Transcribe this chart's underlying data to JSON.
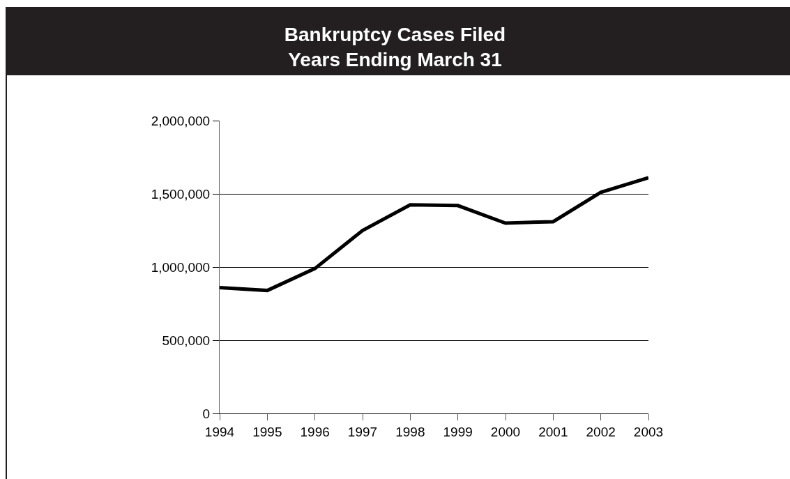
{
  "chart_data": {
    "type": "line",
    "title": "Bankruptcy Cases Filed",
    "subtitle": "Years Ending March 31",
    "categories": [
      "1994",
      "1995",
      "1996",
      "1997",
      "1998",
      "1999",
      "2000",
      "2001",
      "2002",
      "2003"
    ],
    "series": [
      {
        "color": "#000000",
        "values": [
          860000,
          840000,
          990000,
          1250000,
          1425000,
          1420000,
          1300000,
          1310000,
          1510000,
          1610000
        ]
      }
    ],
    "ylim": [
      0,
      2000000
    ],
    "yticks": [
      0,
      {
        "value": 500000,
        "label": "500,000"
      },
      {
        "value": 1000000,
        "label": "1,000,000"
      },
      {
        "value": 1500000,
        "label": "1,500,000"
      },
      {
        "value": 2000000,
        "label": "2,000,000"
      }
    ],
    "grid": "y",
    "marker": "none",
    "line_style": "solid"
  }
}
